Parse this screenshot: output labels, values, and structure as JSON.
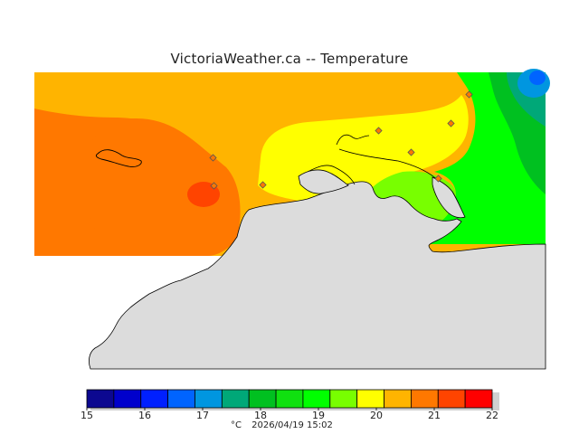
{
  "title": "VictoriaWeather.ca -- Temperature",
  "legend": {
    "ticks": [
      "15",
      "16",
      "17",
      "18",
      "19",
      "20",
      "21",
      "22"
    ],
    "colors": [
      "#0c0890",
      "#0000cc",
      "#0020ff",
      "#0064ff",
      "#0096e0",
      "#00a878",
      "#00c020",
      "#10e010",
      "#00ff00",
      "#78ff00",
      "#ffff00",
      "#ffb400",
      "#ff7800",
      "#ff4400",
      "#ff0000"
    ],
    "unit": "°C",
    "timestamp": "2026/04/19 15:02"
  },
  "map_colors": {
    "band_20_21": "#ffb400",
    "band_21_22": "#ff7800",
    "band_21_5": "#ff4400",
    "band_19_20": "#ffff00",
    "band_18_19": "#78ff00",
    "band_17_18": "#00ff00",
    "band_16_17": "#00c020",
    "band_15_16": "#00a878",
    "band_cold": "#0064ff",
    "land_mask": "#dcdcdc",
    "station_marker": "#ff7800"
  },
  "icons": {
    "station": "diamond-marker-icon"
  }
}
